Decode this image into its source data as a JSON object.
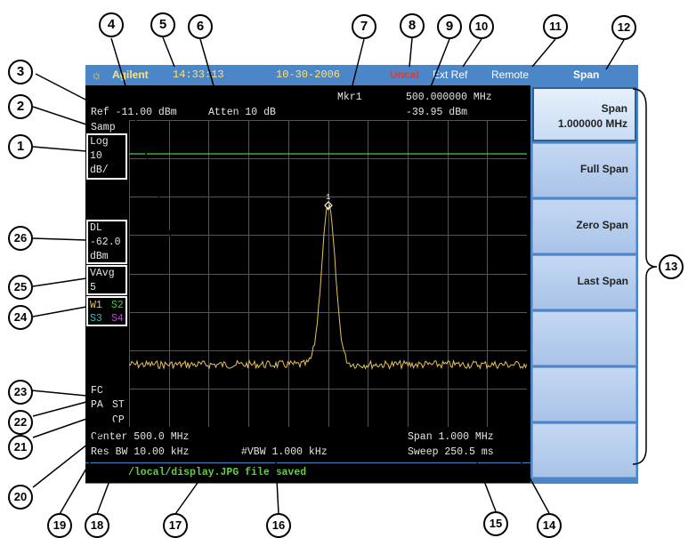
{
  "titlebar": {
    "brand": "Agilent",
    "time": "14:33:13",
    "date": "10-30-2006",
    "uncal": "Uncal",
    "ext_ref": "Ext Ref",
    "remote": "Remote",
    "menu_title": "Span"
  },
  "display": {
    "ref_level": "Ref -11.00 dBm",
    "atten": "Atten 10 dB",
    "marker_label": "Mkr1",
    "marker_freq": "500.000000 MHz",
    "marker_ampl": "-39.95 dBm",
    "detector": "Samp",
    "scale": [
      "Log",
      "10",
      "dB/"
    ],
    "display_line": [
      "DL",
      "-62.0",
      "dBm"
    ],
    "video_avg": [
      "VAvg",
      "5"
    ],
    "traces": {
      "w1": "W1",
      "s2": "S2",
      "s3": "S3",
      "s4": "S4"
    },
    "marker_number": "1",
    "fc": "FC",
    "pa": "PA",
    "st": "ST",
    "cp": "CP",
    "center": "Center 500.0 MHz",
    "res_bw": "Res BW  10.00 kHz",
    "vbw": "#VBW 1.000 kHz",
    "span": "Span 1.000 MHz",
    "sweep": "Sweep 250.5 ms",
    "status_message": "/local/display.JPG file saved"
  },
  "softkeys": [
    {
      "label": "Span",
      "value": "1.000000 MHz",
      "active": true
    },
    {
      "label": "Full Span",
      "value": ""
    },
    {
      "label": "Zero Span",
      "value": ""
    },
    {
      "label": "Last Span",
      "value": ""
    },
    {
      "label": "",
      "value": ""
    },
    {
      "label": "",
      "value": ""
    },
    {
      "label": "",
      "value": ""
    }
  ],
  "callouts": [
    "1",
    "2",
    "3",
    "4",
    "5",
    "6",
    "7",
    "8",
    "9",
    "10",
    "11",
    "12",
    "13",
    "14",
    "15",
    "16",
    "17",
    "18",
    "19",
    "20",
    "21",
    "22",
    "23",
    "24",
    "25",
    "26"
  ],
  "colors": {
    "frame": "#4a86c8",
    "screen": "#000000",
    "trace": "#e8c35a",
    "display_line": "#4ec94e",
    "uncal": "#e03a3a",
    "status_text": "#66cc44",
    "trace_s4": "#b050d0",
    "trace_s3": "#30c0c0",
    "trace_s2": "#40d040",
    "trace_w1": "#e8c35a"
  }
}
